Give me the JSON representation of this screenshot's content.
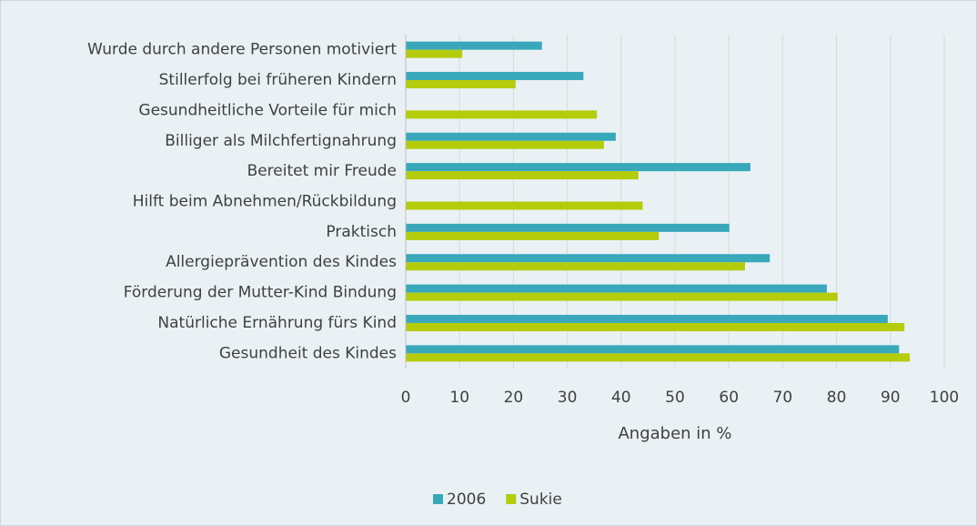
{
  "chart_data": {
    "type": "bar",
    "orientation": "horizontal",
    "categories": [
      "Wurde durch andere Personen motiviert",
      "Stillerfolg bei früheren Kindern",
      "Gesundheitliche Vorteile für mich",
      "Billiger als Milchfertignahrung",
      "Bereitet mir Freude",
      "Hilft beim Abnehmen/Rückbildung",
      "Praktisch",
      "Allergieprävention des Kindes",
      "Förderung der Mutter-Kind Bindung",
      "Natürliche Ernährung fürs Kind",
      "Gesundheit des Kindes"
    ],
    "series": [
      {
        "name": "2006",
        "color": "#38a8ba",
        "values": [
          25.3,
          33,
          null,
          39,
          64,
          null,
          60.1,
          67.6,
          78.2,
          89.5,
          91.6
        ]
      },
      {
        "name": "Sukie",
        "color": "#b4cc0a",
        "values": [
          10.5,
          20.4,
          35.5,
          36.8,
          43.2,
          44,
          47,
          63,
          80.2,
          92.6,
          93.6
        ]
      }
    ],
    "xlabel": "Angaben in %",
    "xlim": [
      0,
      100
    ],
    "xticks": [
      0,
      10,
      20,
      30,
      40,
      50,
      60,
      70,
      80,
      90,
      100
    ],
    "grid": true,
    "legend": "bottom"
  }
}
